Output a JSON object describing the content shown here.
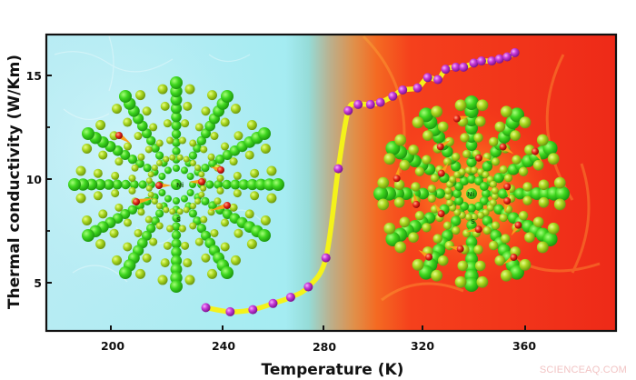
{
  "chart_data": {
    "type": "line",
    "title": "",
    "xlabel": "Temperature (K)",
    "ylabel": "Thermal conductivity (W/Km)",
    "xlim": [
      180,
      392
    ],
    "ylim": [
      2.6,
      16.9
    ],
    "xticks": [
      200,
      240,
      280,
      320,
      360
    ],
    "yticks": [
      5,
      10,
      15
    ],
    "y_minor_ticks": [
      7.5,
      12.5
    ],
    "grid": false,
    "legend": null,
    "series": [
      {
        "name": "Thermal conductivity",
        "marker": "sphere",
        "marker_color": "#c23bd6",
        "line_color": "#f4f21a",
        "x": [
          234,
          243,
          252,
          260,
          267,
          274,
          281,
          286,
          290,
          294,
          299,
          303,
          308,
          312,
          318,
          322,
          326,
          329,
          333,
          336,
          340,
          343,
          347,
          350,
          353,
          356
        ],
        "y": [
          3.8,
          3.6,
          3.7,
          4.0,
          4.3,
          4.8,
          6.2,
          10.5,
          13.3,
          13.6,
          13.6,
          13.7,
          14.0,
          14.3,
          14.4,
          14.9,
          14.8,
          15.3,
          15.4,
          15.4,
          15.6,
          15.7,
          15.7,
          15.8,
          15.9,
          16.1
        ]
      }
    ],
    "background": {
      "cold_region_color": "#aee8f0",
      "transition_center_K": 281,
      "hot_region_color": "#f2331a"
    },
    "annotations": [
      {
        "text": "Ni",
        "region": "cold-molecule-center"
      },
      {
        "text": "S",
        "region": "cold-molecule-below-center"
      },
      {
        "text": "Ni",
        "region": "hot-molecule-center"
      },
      {
        "text": "S",
        "region": "hot-molecule-below-center"
      }
    ]
  },
  "labels": {
    "x_axis_title": "Temperature (K)",
    "y_axis_title": "Thermal conductivity (W/Km)",
    "x_ticks": [
      "200",
      "240",
      "280",
      "320",
      "360"
    ],
    "y_ticks": [
      "5",
      "10",
      "15"
    ],
    "watermark": "SCIENCEAQ.COM",
    "ni_label": "Ni",
    "s_label": "S"
  },
  "colors": {
    "axis": "#111111",
    "marker": "#c23bd6",
    "curve": "#f4f21a",
    "atom_green": "#3ed61e",
    "atom_yellowgreen": "#a8d61e",
    "atom_red": "#e8281a"
  }
}
